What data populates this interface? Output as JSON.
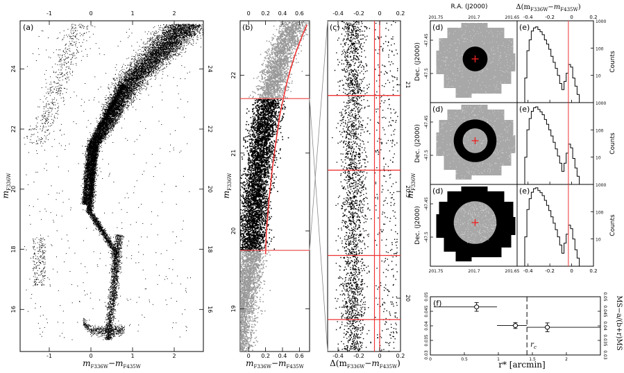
{
  "chart_data": [
    {
      "type": "scatter",
      "panel_label": "(a)",
      "xlabel": "m",
      "xlabel_sub": "F336W",
      "xlabel_dash": "−m",
      "xlabel_sub2": "F435W",
      "ylabel": "m",
      "ylabel_sub": "F336W",
      "xlim": [
        -1.7,
        2.7
      ],
      "ylim": [
        25.6,
        14.6
      ],
      "x_ticks": [
        "-1",
        "0",
        "1",
        "2"
      ],
      "y_ticks": [
        "16",
        "18",
        "20",
        "22",
        "24"
      ],
      "top_ticks": [
        "-1",
        "0",
        "1",
        "2"
      ],
      "right_ticks": [
        "16",
        "18",
        "20",
        "22",
        "24"
      ],
      "zoom_box": {
        "x": [
          -0.2,
          1.05
        ],
        "y": [
          18.6,
          22.9
        ]
      }
    },
    {
      "type": "scatter",
      "panel_label": "(b)",
      "xlabel": "m",
      "xlabel_sub": "F336W",
      "xlabel_dash": "−m",
      "xlabel_sub2": "F435W",
      "ylabel": "m",
      "ylabel_sub": "F336W",
      "xlim": [
        -0.1,
        0.72
      ],
      "ylim": [
        22.7,
        18.45
      ],
      "x_ticks": [
        "0",
        "0.2",
        "0.4",
        "0.6"
      ],
      "y_ticks": [
        "19",
        "20",
        "21",
        "22"
      ],
      "top_ticks": [
        "0",
        "0.2",
        "0.4",
        "0.6"
      ],
      "ridge_line": {
        "x": [
          0.2,
          0.21,
          0.24,
          0.28,
          0.33,
          0.37,
          0.41,
          0.45,
          0.5,
          0.56,
          0.63,
          0.69
        ],
        "y": [
          19.7,
          20.0,
          20.4,
          20.8,
          21.2,
          21.5,
          21.7,
          21.9,
          22.1,
          22.3,
          22.5,
          22.65
        ]
      },
      "cut_magnitudes": [
        19.75,
        21.7
      ]
    },
    {
      "type": "scatter",
      "panel_label": "(c)",
      "xlabel": "Δ(m",
      "xlabel_sub": "F336W",
      "xlabel_dash": "−m",
      "xlabel_sub2": "F435W",
      "xlabel_close": ")",
      "ylabel": "m",
      "ylabel_sub": "F336W",
      "xlim": [
        -0.5,
        0.2
      ],
      "ylim": [
        21.3,
        19.75
      ],
      "x_ticks": [
        "-0.4",
        "-0.2",
        "0",
        "0.2"
      ],
      "top_ticks": [
        "-0.4",
        "-0.2",
        "0",
        "0.2"
      ],
      "right_ticks": [
        "20",
        "20.5",
        "21"
      ],
      "vertical_lines": [
        -0.05,
        0.0
      ],
      "bin_edges": [
        19.9,
        20.2,
        20.6,
        20.95
      ]
    },
    {
      "type": "scatter",
      "panel_label": "(d)",
      "xlabel_top": "R.A. (J2000)",
      "ylabel": "Dec. (J2000)",
      "x_ticks": [
        "201.75",
        "201.7",
        "201.65"
      ],
      "y_ticks": [
        "-47.45",
        "-47.5"
      ],
      "rows": 3,
      "ring_radii": [
        [
          0,
          0.32
        ],
        [
          0.32,
          0.55
        ],
        [
          0.55,
          1.0
        ]
      ]
    },
    {
      "type": "line",
      "panel_label": "(e)",
      "xlabel_top": "Δ(m",
      "xlabel_sub": "F336W",
      "xlabel_dash": "−m",
      "xlabel_sub2": "F435W",
      "xlabel_close": ")",
      "ylabel": "Counts",
      "log_y": true,
      "xlim": [
        -0.5,
        0.2
      ],
      "ylim": [
        1,
        1000
      ],
      "x_ticks": [
        "-0.4",
        "-0.2",
        "0",
        "0.2"
      ],
      "y_ticks": [
        "1",
        "10",
        "100",
        "1000"
      ],
      "vline": -0.03,
      "series": [
        {
          "x": [
            -0.46,
            -0.44,
            -0.42,
            -0.4,
            -0.38,
            -0.36,
            -0.34,
            -0.32,
            -0.3,
            -0.28,
            -0.26,
            -0.24,
            -0.22,
            -0.2,
            -0.18,
            -0.16,
            -0.14,
            -0.12,
            -0.1,
            -0.08,
            -0.06,
            -0.04,
            -0.02,
            0.0,
            0.02,
            0.04,
            0.06,
            0.08,
            0.1
          ],
          "y": [
            1,
            1,
            8,
            80,
            200,
            420,
            550,
            600,
            480,
            400,
            310,
            200,
            140,
            90,
            50,
            30,
            18,
            10,
            5,
            3,
            6,
            12,
            25,
            20,
            8,
            4,
            2,
            1,
            1
          ]
        },
        {
          "x": [
            -0.46,
            -0.44,
            -0.42,
            -0.4,
            -0.38,
            -0.36,
            -0.34,
            -0.32,
            -0.3,
            -0.28,
            -0.26,
            -0.24,
            -0.22,
            -0.2,
            -0.18,
            -0.16,
            -0.14,
            -0.12,
            -0.1,
            -0.08,
            -0.06,
            -0.04,
            -0.02,
            0.0,
            0.02,
            0.04,
            0.06,
            0.08,
            0.1
          ],
          "y": [
            1,
            1,
            10,
            100,
            260,
            480,
            650,
            700,
            560,
            460,
            360,
            240,
            160,
            100,
            60,
            35,
            20,
            11,
            6,
            3,
            6,
            14,
            30,
            22,
            9,
            4,
            2,
            1,
            1
          ]
        },
        {
          "x": [
            -0.46,
            -0.44,
            -0.42,
            -0.4,
            -0.38,
            -0.36,
            -0.34,
            -0.32,
            -0.3,
            -0.28,
            -0.26,
            -0.24,
            -0.22,
            -0.2,
            -0.18,
            -0.16,
            -0.14,
            -0.12,
            -0.1,
            -0.08,
            -0.06,
            -0.04,
            -0.02,
            0.0,
            0.02,
            0.04,
            0.06,
            0.08,
            0.1
          ],
          "y": [
            1,
            1,
            12,
            120,
            300,
            520,
            700,
            750,
            600,
            500,
            390,
            260,
            170,
            110,
            65,
            38,
            22,
            12,
            6,
            3,
            7,
            15,
            32,
            24,
            10,
            4,
            2,
            1,
            1
          ]
        }
      ]
    },
    {
      "type": "scatter",
      "panel_label": "(f)",
      "xlabel": "r* [arcmin]",
      "ylabel_right": "MS−a/(b+r)MS",
      "xlim": [
        0,
        2.5
      ],
      "ylim": [
        0.03,
        0.05
      ],
      "x_ticks": [
        "0",
        "0.5",
        "1",
        "1.5",
        "2"
      ],
      "y_ticks": [
        "0.03",
        "0.035",
        "0.04",
        "0.045",
        "0.05"
      ],
      "points": [
        {
          "x": 0.68,
          "y": 0.0465,
          "xerr": [
            0.05,
            0.98
          ],
          "yerr": 0.0015
        },
        {
          "x": 1.25,
          "y": 0.0401,
          "xerr": [
            0.98,
            1.42
          ],
          "yerr": 0.001
        },
        {
          "x": 1.72,
          "y": 0.0395,
          "xerr": [
            1.42,
            2.5
          ],
          "yerr": 0.0015
        }
      ],
      "ref_line_x": 1.42,
      "ref_label": "r",
      "ref_label_sub": "c"
    }
  ]
}
